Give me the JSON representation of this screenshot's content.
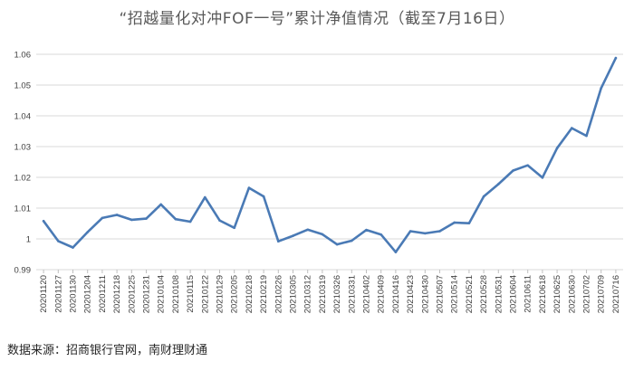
{
  "chart_data": {
    "type": "line",
    "title": "“招越量化对冲FOF一号”累计净值情况（截至7月16日）",
    "source": "数据来源：招商银行官网，南财理财通",
    "xlabel": "",
    "ylabel": "",
    "ylim": [
      0.99,
      1.06
    ],
    "yticks": [
      "0.99",
      "1",
      "1.01",
      "1.02",
      "1.03",
      "1.04",
      "1.05",
      "1.06"
    ],
    "grid": true,
    "legend": "none",
    "line_color": "#4a7ab5",
    "grid_color": "#d9d9d9",
    "x": [
      "20201120",
      "20201127",
      "20201130",
      "20201204",
      "20201211",
      "20201218",
      "20201225",
      "20201231",
      "20210104",
      "20210108",
      "20210115",
      "20210122",
      "20210129",
      "20210205",
      "20210218",
      "20210219",
      "20210226",
      "20210305",
      "20210312",
      "20210319",
      "20210326",
      "20210331",
      "20210402",
      "20210409",
      "20210416",
      "20210423",
      "20210430",
      "20210507",
      "20210514",
      "20210521",
      "20210528",
      "20210531",
      "20210604",
      "20210611",
      "20210618",
      "20210625",
      "20210630",
      "20210702",
      "20210709",
      "20210716"
    ],
    "values": [
      1.0058,
      0.9993,
      0.9972,
      1.0022,
      1.0068,
      1.0078,
      1.0062,
      1.0066,
      1.0112,
      1.0064,
      1.0056,
      1.0135,
      1.006,
      1.0036,
      1.0166,
      1.0138,
      0.9992,
      1.001,
      1.003,
      1.0015,
      0.9982,
      0.9994,
      1.0029,
      1.0014,
      0.9957,
      1.0025,
      1.0018,
      1.0025,
      1.0053,
      1.0051,
      1.0138,
      1.0178,
      1.0222,
      1.0239,
      1.0199,
      1.0295,
      1.036,
      1.0335,
      1.049,
      1.0588
    ]
  }
}
